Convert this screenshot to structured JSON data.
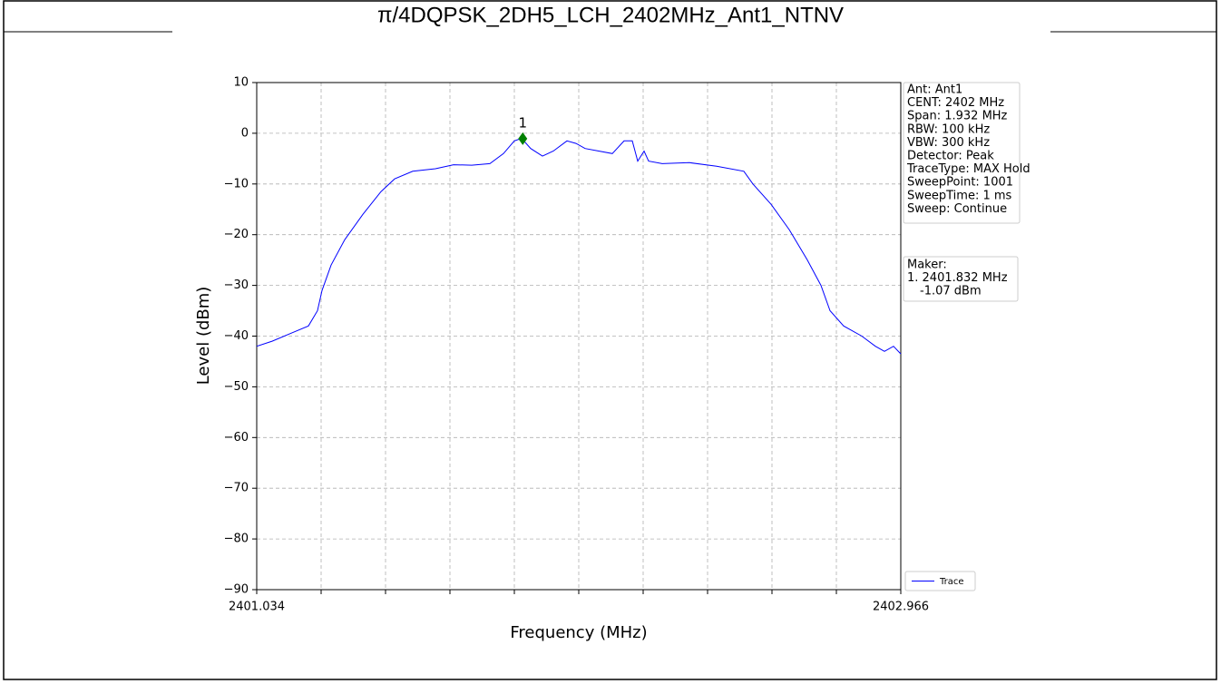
{
  "chart_data": {
    "type": "line",
    "title": "π/4DQPSK_2DH5_LCH_2402MHz_Ant1_NTNV",
    "xlabel": "Frequency (MHz)",
    "ylabel": "Level (dBm)",
    "xlim": [
      2401.034,
      2402.966
    ],
    "ylim": [
      -90,
      10
    ],
    "xticks": [
      2401.034,
      2402.966
    ],
    "xminor_ticks": [
      2401.2272,
      2401.4204,
      2401.6136,
      2401.8068,
      2402.0,
      2402.1932,
      2402.3864,
      2402.5796,
      2402.7728
    ],
    "yticks": [
      {
        "value": -90,
        "label": "−90"
      },
      {
        "value": -80,
        "label": "−80"
      },
      {
        "value": -70,
        "label": "−70"
      },
      {
        "value": -60,
        "label": "−60"
      },
      {
        "value": -50,
        "label": "−50"
      },
      {
        "value": -40,
        "label": "−40"
      },
      {
        "value": -30,
        "label": "−30"
      },
      {
        "value": -20,
        "label": "−20"
      },
      {
        "value": -10,
        "label": "−10"
      },
      0,
      10
    ],
    "grid": true,
    "x": [
      2401.034,
      2401.0803,
      2401.1347,
      2401.1891,
      2401.2163,
      2401.2299,
      2401.2571,
      2401.298,
      2401.3524,
      2401.4068,
      2401.4476,
      2401.502,
      2401.5701,
      2401.6245,
      2401.6789,
      2401.7333,
      2401.7741,
      2401.8068,
      2401.8286,
      2401.8558,
      2401.8912,
      2401.9238,
      2401.9646,
      2401.9918,
      2402.019,
      2402.0599,
      2402.1007,
      2402.1361,
      2402.1605,
      2402.1769,
      2402.1959,
      2402.2095,
      2402.2503,
      2402.332,
      2402.4136,
      2402.4953,
      2402.5225,
      2402.5769,
      2402.6313,
      2402.6857,
      2402.7265,
      2402.7537,
      2402.7946,
      2402.849,
      2402.8898,
      2402.917,
      2402.9442,
      2402.966
    ],
    "series": [
      {
        "name": "Trace",
        "color": "#0000ff",
        "values": [
          -42,
          -41,
          -39.5,
          -38,
          -35,
          -31,
          -26,
          -21,
          -16,
          -11.5,
          -9,
          -7.5,
          -7,
          -6.2,
          -6.3,
          -6,
          -4,
          -1.5,
          -1,
          -3,
          -4.5,
          -3.5,
          -1.5,
          -2,
          -3,
          -3.5,
          -4,
          -1.5,
          -1.5,
          -5.5,
          -3.5,
          -5.5,
          -6,
          -5.8,
          -6.5,
          -7.5,
          -10,
          -14,
          -19,
          -25,
          -30,
          -35,
          -38,
          -40,
          -42,
          -43,
          -42,
          -43.5
        ]
      }
    ],
    "marker": {
      "label": "1",
      "x": 2401.832,
      "y": -1.07,
      "color": "#008000"
    },
    "info_lines": [
      "Ant: Ant1",
      "CENT: 2402 MHz",
      "Span: 1.932 MHz",
      "RBW: 100 kHz",
      "VBW: 300 kHz",
      "Detector: Peak",
      "TraceType: MAX Hold",
      "SweepPoint: 1001",
      "SweepTime: 1 ms",
      "Sweep: Continue"
    ],
    "marker_lines": [
      "Maker:",
      "1. 2401.832 MHz",
      "-1.07 dBm"
    ],
    "legend": "lower right"
  }
}
